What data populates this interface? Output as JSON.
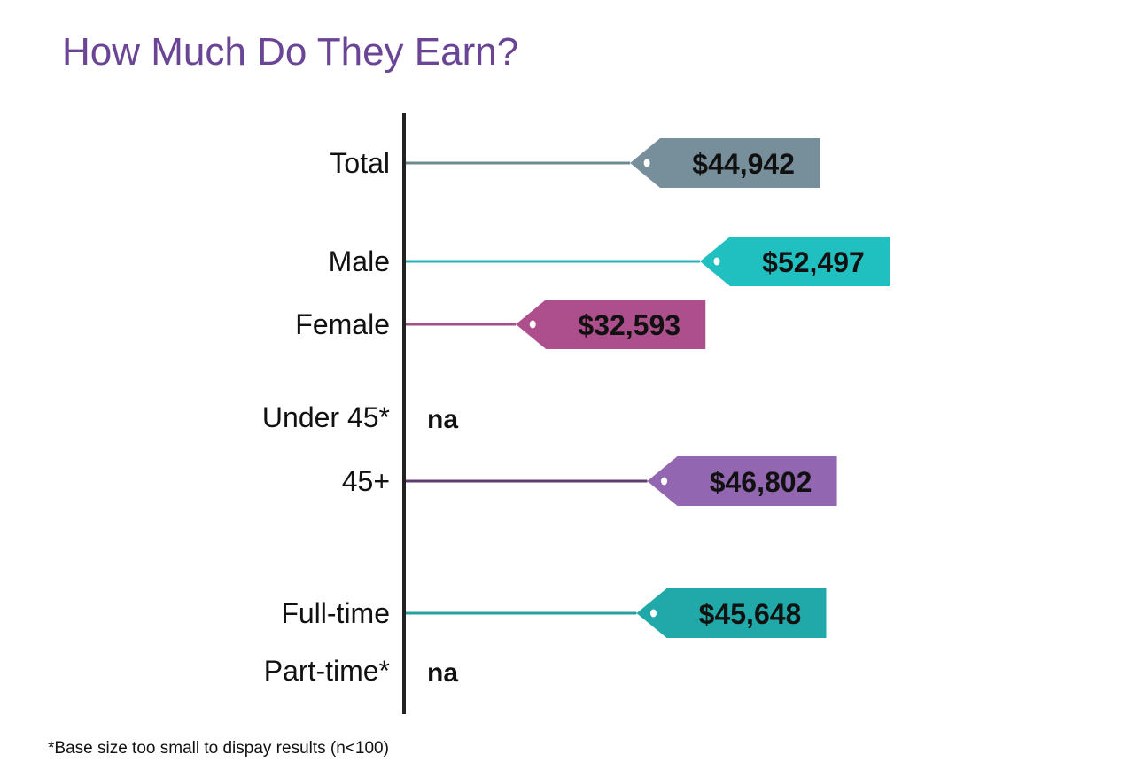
{
  "title": "How Much Do They Earn?",
  "footnote": "*Base size too small to dispay results (n<100)",
  "chart_data": {
    "type": "bar",
    "categories": [
      "Total",
      "Male",
      "Female",
      "Under 45*",
      "45+",
      "Full-time",
      "Part-time*"
    ],
    "values": [
      44942,
      52497,
      32593,
      null,
      46802,
      45648,
      null
    ],
    "value_labels": [
      "$44,942",
      "$52,497",
      "$32,593",
      "na",
      "$46,802",
      "$45,648",
      "na"
    ],
    "colors": [
      "#778f9b",
      "#20bfc0",
      "#ad4e8d",
      null,
      "#9266b0",
      "#21a8a8",
      null
    ],
    "line_colors": [
      "#6f8891",
      "#25b0b1",
      "#a3508a",
      null,
      "#5c3f6e",
      "#2aa1a1",
      null
    ],
    "grid": false,
    "legend": "none"
  }
}
